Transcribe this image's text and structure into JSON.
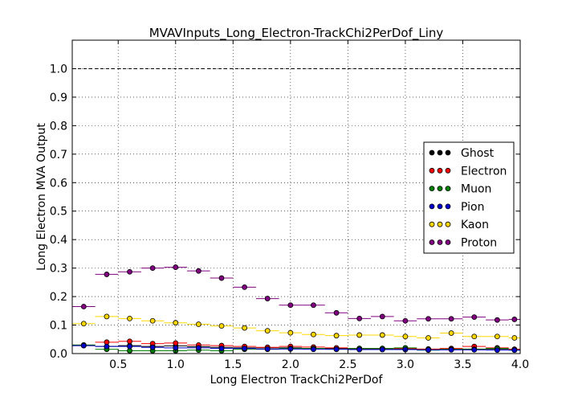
{
  "chart_data": {
    "type": "scatter",
    "title": "MVAVInputs_Long_Electron-TrackChi2PerDof_Liny",
    "xlabel": "Long Electron TrackChi2PerDof",
    "ylabel": "Long Electron MVA Output",
    "xlim": [
      0.1,
      4.0
    ],
    "ylim": [
      0.0,
      1.1
    ],
    "xticks": [
      "0.5",
      "1.0",
      "1.5",
      "2.0",
      "2.5",
      "3.0",
      "3.5",
      "4.0"
    ],
    "yticks": [
      "0.0",
      "0.1",
      "0.2",
      "0.3",
      "0.4",
      "0.5",
      "0.6",
      "0.7",
      "0.8",
      "0.9",
      "1.0"
    ],
    "reference_line": 1.0,
    "grid": true,
    "legend_position": "right",
    "bin_edges": [
      0.1,
      0.3,
      0.5,
      0.7,
      0.9,
      1.1,
      1.3,
      1.5,
      1.7,
      1.9,
      2.1,
      2.3,
      2.5,
      2.7,
      2.9,
      3.1,
      3.3,
      3.5,
      3.7,
      3.9,
      4.0
    ],
    "series": [
      {
        "name": "Ghost",
        "color": "#000000",
        "values": [
          0.03,
          0.025,
          0.028,
          0.025,
          0.027,
          0.024,
          0.022,
          0.02,
          0.02,
          0.02,
          0.018,
          0.018,
          0.017,
          0.017,
          0.016,
          0.016,
          0.016,
          0.016,
          0.016,
          0.015
        ]
      },
      {
        "name": "Electron",
        "color": "#ff0000",
        "values": [
          0.028,
          0.04,
          0.043,
          0.035,
          0.037,
          0.03,
          0.028,
          0.025,
          0.022,
          0.025,
          0.023,
          0.02,
          0.018,
          0.018,
          0.018,
          0.015,
          0.018,
          0.025,
          0.02,
          0.015
        ]
      },
      {
        "name": "Muon",
        "color": "#008000",
        "values": [
          0.03,
          0.015,
          0.01,
          0.01,
          0.01,
          0.012,
          0.01,
          0.015,
          0.015,
          0.018,
          0.018,
          0.015,
          0.018,
          0.018,
          0.02,
          0.012,
          0.015,
          0.015,
          0.018,
          0.012
        ]
      },
      {
        "name": "Pion",
        "color": "#0000cc",
        "values": [
          0.028,
          0.025,
          0.025,
          0.022,
          0.02,
          0.02,
          0.018,
          0.018,
          0.016,
          0.016,
          0.015,
          0.015,
          0.014,
          0.014,
          0.014,
          0.013,
          0.013,
          0.013,
          0.012,
          0.012
        ]
      },
      {
        "name": "Kaon",
        "color": "#ffd700",
        "values": [
          0.105,
          0.13,
          0.123,
          0.115,
          0.108,
          0.103,
          0.097,
          0.09,
          0.08,
          0.073,
          0.067,
          0.063,
          0.065,
          0.065,
          0.06,
          0.055,
          0.072,
          0.06,
          0.06,
          0.055
        ]
      },
      {
        "name": "Proton",
        "color": "#800080",
        "values": [
          0.165,
          0.278,
          0.287,
          0.3,
          0.303,
          0.29,
          0.265,
          0.233,
          0.193,
          0.17,
          0.17,
          0.143,
          0.123,
          0.13,
          0.115,
          0.122,
          0.122,
          0.128,
          0.118,
          0.12
        ]
      }
    ]
  }
}
